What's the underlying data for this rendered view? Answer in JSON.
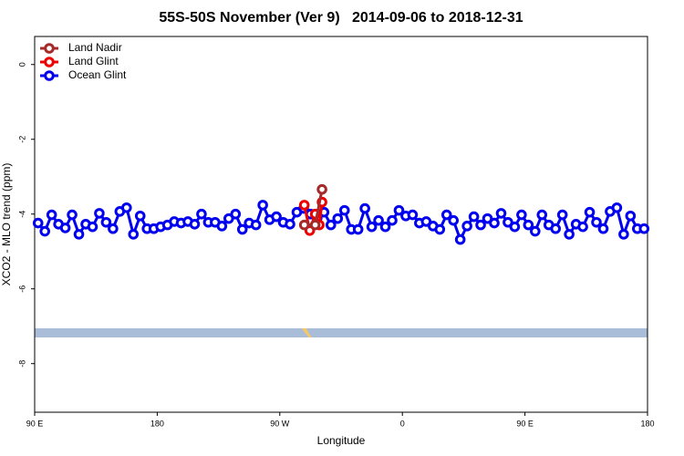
{
  "chart_data": {
    "type": "line",
    "title": "55S-50S November (Ver 9)   2014-09-06 to 2018-12-31",
    "xlabel": "Longitude",
    "ylabel": "XCO2 - MLO trend (ppm)",
    "xlim": [
      90,
      540
    ],
    "ylim": [
      -9.3,
      0.75
    ],
    "xticks": [
      {
        "value": 90,
        "label": "90 E"
      },
      180,
      {
        "value": 270,
        "label": "90 W"
      },
      {
        "value": 360,
        "label": "0"
      },
      {
        "value": 450,
        "label": "90 E"
      },
      {
        "value": 540,
        "label": "180"
      }
    ],
    "yticks": [
      0,
      -2,
      -4,
      -6,
      -8
    ],
    "legend": "upper left",
    "series": [
      {
        "name": "Land Nadir",
        "color": "#a52a2a",
        "x": [
          288,
          296,
          301
        ],
        "values": [
          -4.29,
          -4.29,
          -3.34
        ]
      },
      {
        "name": "Land Glint",
        "color": "#ee0000",
        "x": [
          288,
          292,
          296,
          299,
          301
        ],
        "values": [
          -3.76,
          -4.44,
          -4.0,
          -4.29,
          -3.68
        ]
      },
      {
        "name": "Ocean Glint",
        "color": "#0000ee",
        "x": [
          92.5,
          97.5,
          102.5,
          107.5,
          112.5,
          117.5,
          122.5,
          127.5,
          132.5,
          137.5,
          142.5,
          147.5,
          152.5,
          157.5,
          162.5,
          167.5,
          172.5,
          177.5,
          182.5,
          187.5,
          192.5,
          197.5,
          202.5,
          207.5,
          212.5,
          217.5,
          222.5,
          227.5,
          232.5,
          237.5,
          242.5,
          247.5,
          252.5,
          257.5,
          262.5,
          267.5,
          272.5,
          277.5,
          282.5,
          287.5,
          292.5,
          297.5,
          302.5,
          307.5,
          312.5,
          317.5,
          322.5,
          327.5,
          332.5,
          337.5,
          342.5,
          347.5,
          352.5,
          357.5,
          362.5,
          367.5,
          372.5,
          377.5,
          382.5,
          387.5,
          392.5,
          397.5,
          402.5,
          407.5,
          412.5,
          417.5,
          422.5,
          427.5,
          432.5,
          437.5,
          442.5,
          447.5,
          452.5,
          457.5,
          462.5,
          467.5,
          472.5,
          477.5,
          482.5,
          487.5,
          492.5,
          497.5,
          502.5,
          507.5,
          512.5,
          517.5,
          522.5,
          527.5,
          532.5,
          537.5
        ],
        "values": [
          -4.24,
          -4.46,
          -4.02,
          -4.27,
          -4.37,
          -4.02,
          -4.54,
          -4.27,
          -4.34,
          -3.98,
          -4.22,
          -4.39,
          -3.93,
          -3.83,
          -4.54,
          -4.05,
          -4.39,
          -4.39,
          -4.34,
          -4.29,
          -4.2,
          -4.24,
          -4.2,
          -4.27,
          -4.0,
          -4.22,
          -4.22,
          -4.32,
          -4.12,
          -4.0,
          -4.41,
          -4.24,
          -4.29,
          -3.76,
          -4.15,
          -4.07,
          -4.22,
          -4.27,
          -3.95,
          -3.85,
          -4.0,
          -4.1,
          -3.95,
          -4.29,
          -4.12,
          -3.9,
          -4.41,
          -4.41,
          -3.85,
          -4.34,
          -4.17,
          -4.34,
          -4.17,
          -3.9,
          -4.05,
          -4.02,
          -4.24,
          -4.2,
          -4.32,
          -4.41,
          -4.02,
          -4.17,
          -4.68,
          -4.32,
          -4.07,
          -4.29,
          -4.12,
          -4.24,
          -3.98,
          -4.22,
          -4.34,
          -4.02,
          -4.29,
          -4.46,
          -4.02,
          -4.29,
          -4.39,
          -4.02,
          -4.54,
          -4.27,
          -4.34,
          -3.95,
          -4.22,
          -4.39,
          -3.93,
          -3.83,
          -4.54,
          -4.05,
          -4.39,
          -4.39
        ]
      }
    ]
  }
}
